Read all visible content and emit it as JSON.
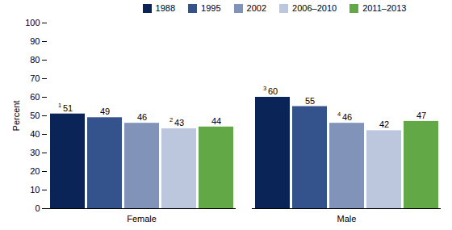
{
  "chart_data": {
    "type": "bar",
    "categories": [
      "Female",
      "Male"
    ],
    "series": [
      {
        "name": "1988",
        "color": "#0b2457",
        "values": [
          51,
          60
        ],
        "notes": [
          "1",
          "3"
        ]
      },
      {
        "name": "1995",
        "color": "#34528c",
        "values": [
          49,
          55
        ],
        "notes": [
          null,
          null
        ]
      },
      {
        "name": "2002",
        "color": "#8193b9",
        "values": [
          46,
          46
        ],
        "notes": [
          null,
          "4"
        ]
      },
      {
        "name": "2006–2010",
        "color": "#bcc6dc",
        "values": [
          43,
          42
        ],
        "notes": [
          "2",
          null
        ]
      },
      {
        "name": "2011–2013",
        "color": "#63a847",
        "values": [
          44,
          47
        ],
        "notes": [
          null,
          null
        ]
      }
    ],
    "y_label": "Percent",
    "ylim": [
      0,
      100
    ],
    "yticks": [
      0,
      10,
      20,
      30,
      40,
      50,
      60,
      70,
      80,
      90,
      100
    ],
    "grid": false,
    "legend": "top",
    "data_labels": true
  }
}
